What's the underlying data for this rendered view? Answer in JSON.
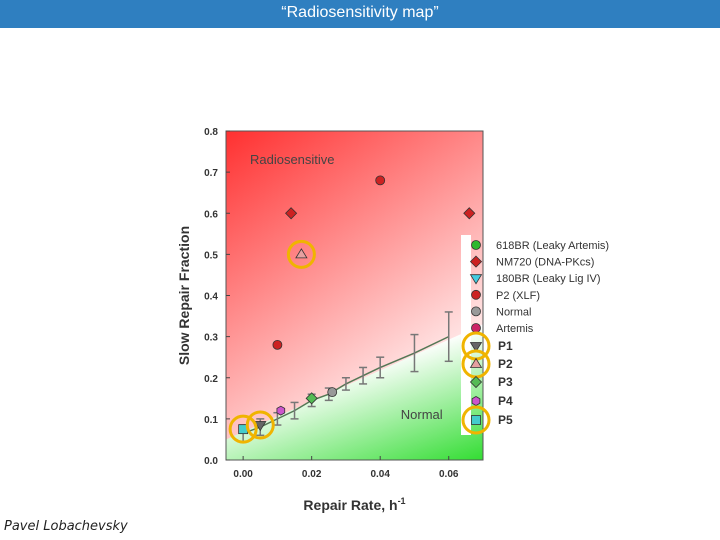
{
  "slide": {
    "title": "“Radiosensitivity map”",
    "author": "Pavel Lobachevsky"
  },
  "colors": {
    "title_bar": "#2f7fc0",
    "radiosensitive_zone": "#ff3030",
    "normal_zone": "#33dd33",
    "highlight_ring": "#f0b400"
  },
  "chart_data": {
    "type": "scatter",
    "xlabel": "Repair Rate, h",
    "xlabel_sup": "-1",
    "ylabel": "Slow Repair Fraction",
    "xlim": [
      -0.005,
      0.07
    ],
    "ylim": [
      0.0,
      0.8
    ],
    "xticks": [
      "0.00",
      "0.02",
      "0.04",
      "0.06"
    ],
    "xtick_values": [
      0,
      0.02,
      0.04,
      0.06
    ],
    "yticks": [
      "0.0",
      "0.1",
      "0.2",
      "0.3",
      "0.4",
      "0.5",
      "0.6",
      "0.7",
      "0.8"
    ],
    "ytick_values": [
      0,
      0.1,
      0.2,
      0.3,
      0.4,
      0.5,
      0.6,
      0.7,
      0.8
    ],
    "grid": false,
    "legend_position": "right",
    "annotations": [
      {
        "text": "Radiosensitive",
        "x": 0.002,
        "y": 0.72
      },
      {
        "text": "Normal",
        "x": 0.046,
        "y": 0.1
      }
    ],
    "series": [
      {
        "name": "618BR (Leaky Artemis)",
        "marker": "circle",
        "color": "#2eb82e",
        "points": []
      },
      {
        "name": "NM720 (DNA-PKcs)",
        "marker": "diamond",
        "color": "#cc2222",
        "points": [
          [
            0.014,
            0.6
          ],
          [
            0.066,
            0.6
          ]
        ]
      },
      {
        "name": "180BR (Leaky Lig IV)",
        "marker": "triangle-down",
        "color": "#44cce0",
        "points": []
      },
      {
        "name": "P2 (XLF)",
        "marker": "circle",
        "color": "#cc2222",
        "points": [
          [
            0.04,
            0.68
          ],
          [
            0.01,
            0.28
          ]
        ]
      },
      {
        "name": "Normal",
        "marker": "circle",
        "color": "#999999",
        "points": [
          [
            0.026,
            0.165
          ]
        ]
      },
      {
        "name": "Artemis",
        "marker": "circle",
        "color": "#cc2266",
        "points": []
      },
      {
        "name": "P1",
        "marker": "triangle-down",
        "color": "#666666",
        "points": [
          [
            0.005,
            0.085
          ]
        ]
      },
      {
        "name": "P2",
        "marker": "triangle-up",
        "color": "#e6a0a0",
        "points": [
          [
            0.017,
            0.5
          ]
        ]
      },
      {
        "name": "P3",
        "marker": "diamond",
        "color": "#55bb55",
        "points": [
          [
            0.02,
            0.15
          ]
        ]
      },
      {
        "name": "P4",
        "marker": "hexagon",
        "color": "#cc55cc",
        "points": [
          [
            0.011,
            0.12
          ]
        ]
      },
      {
        "name": "P5",
        "marker": "square",
        "color": "#44cccc",
        "points": [
          [
            0.0,
            0.075
          ]
        ]
      }
    ],
    "normal_trend": {
      "x": [
        0.0,
        0.005,
        0.01,
        0.015,
        0.02,
        0.025,
        0.03,
        0.035,
        0.04,
        0.05,
        0.06
      ],
      "y": [
        0.065,
        0.08,
        0.1,
        0.12,
        0.145,
        0.16,
        0.185,
        0.205,
        0.225,
        0.26,
        0.3
      ],
      "err": [
        0.02,
        0.02,
        0.015,
        0.02,
        0.015,
        0.015,
        0.015,
        0.02,
        0.025,
        0.045,
        0.06
      ]
    },
    "highlighted": [
      "P1",
      "P2",
      "P5"
    ]
  }
}
